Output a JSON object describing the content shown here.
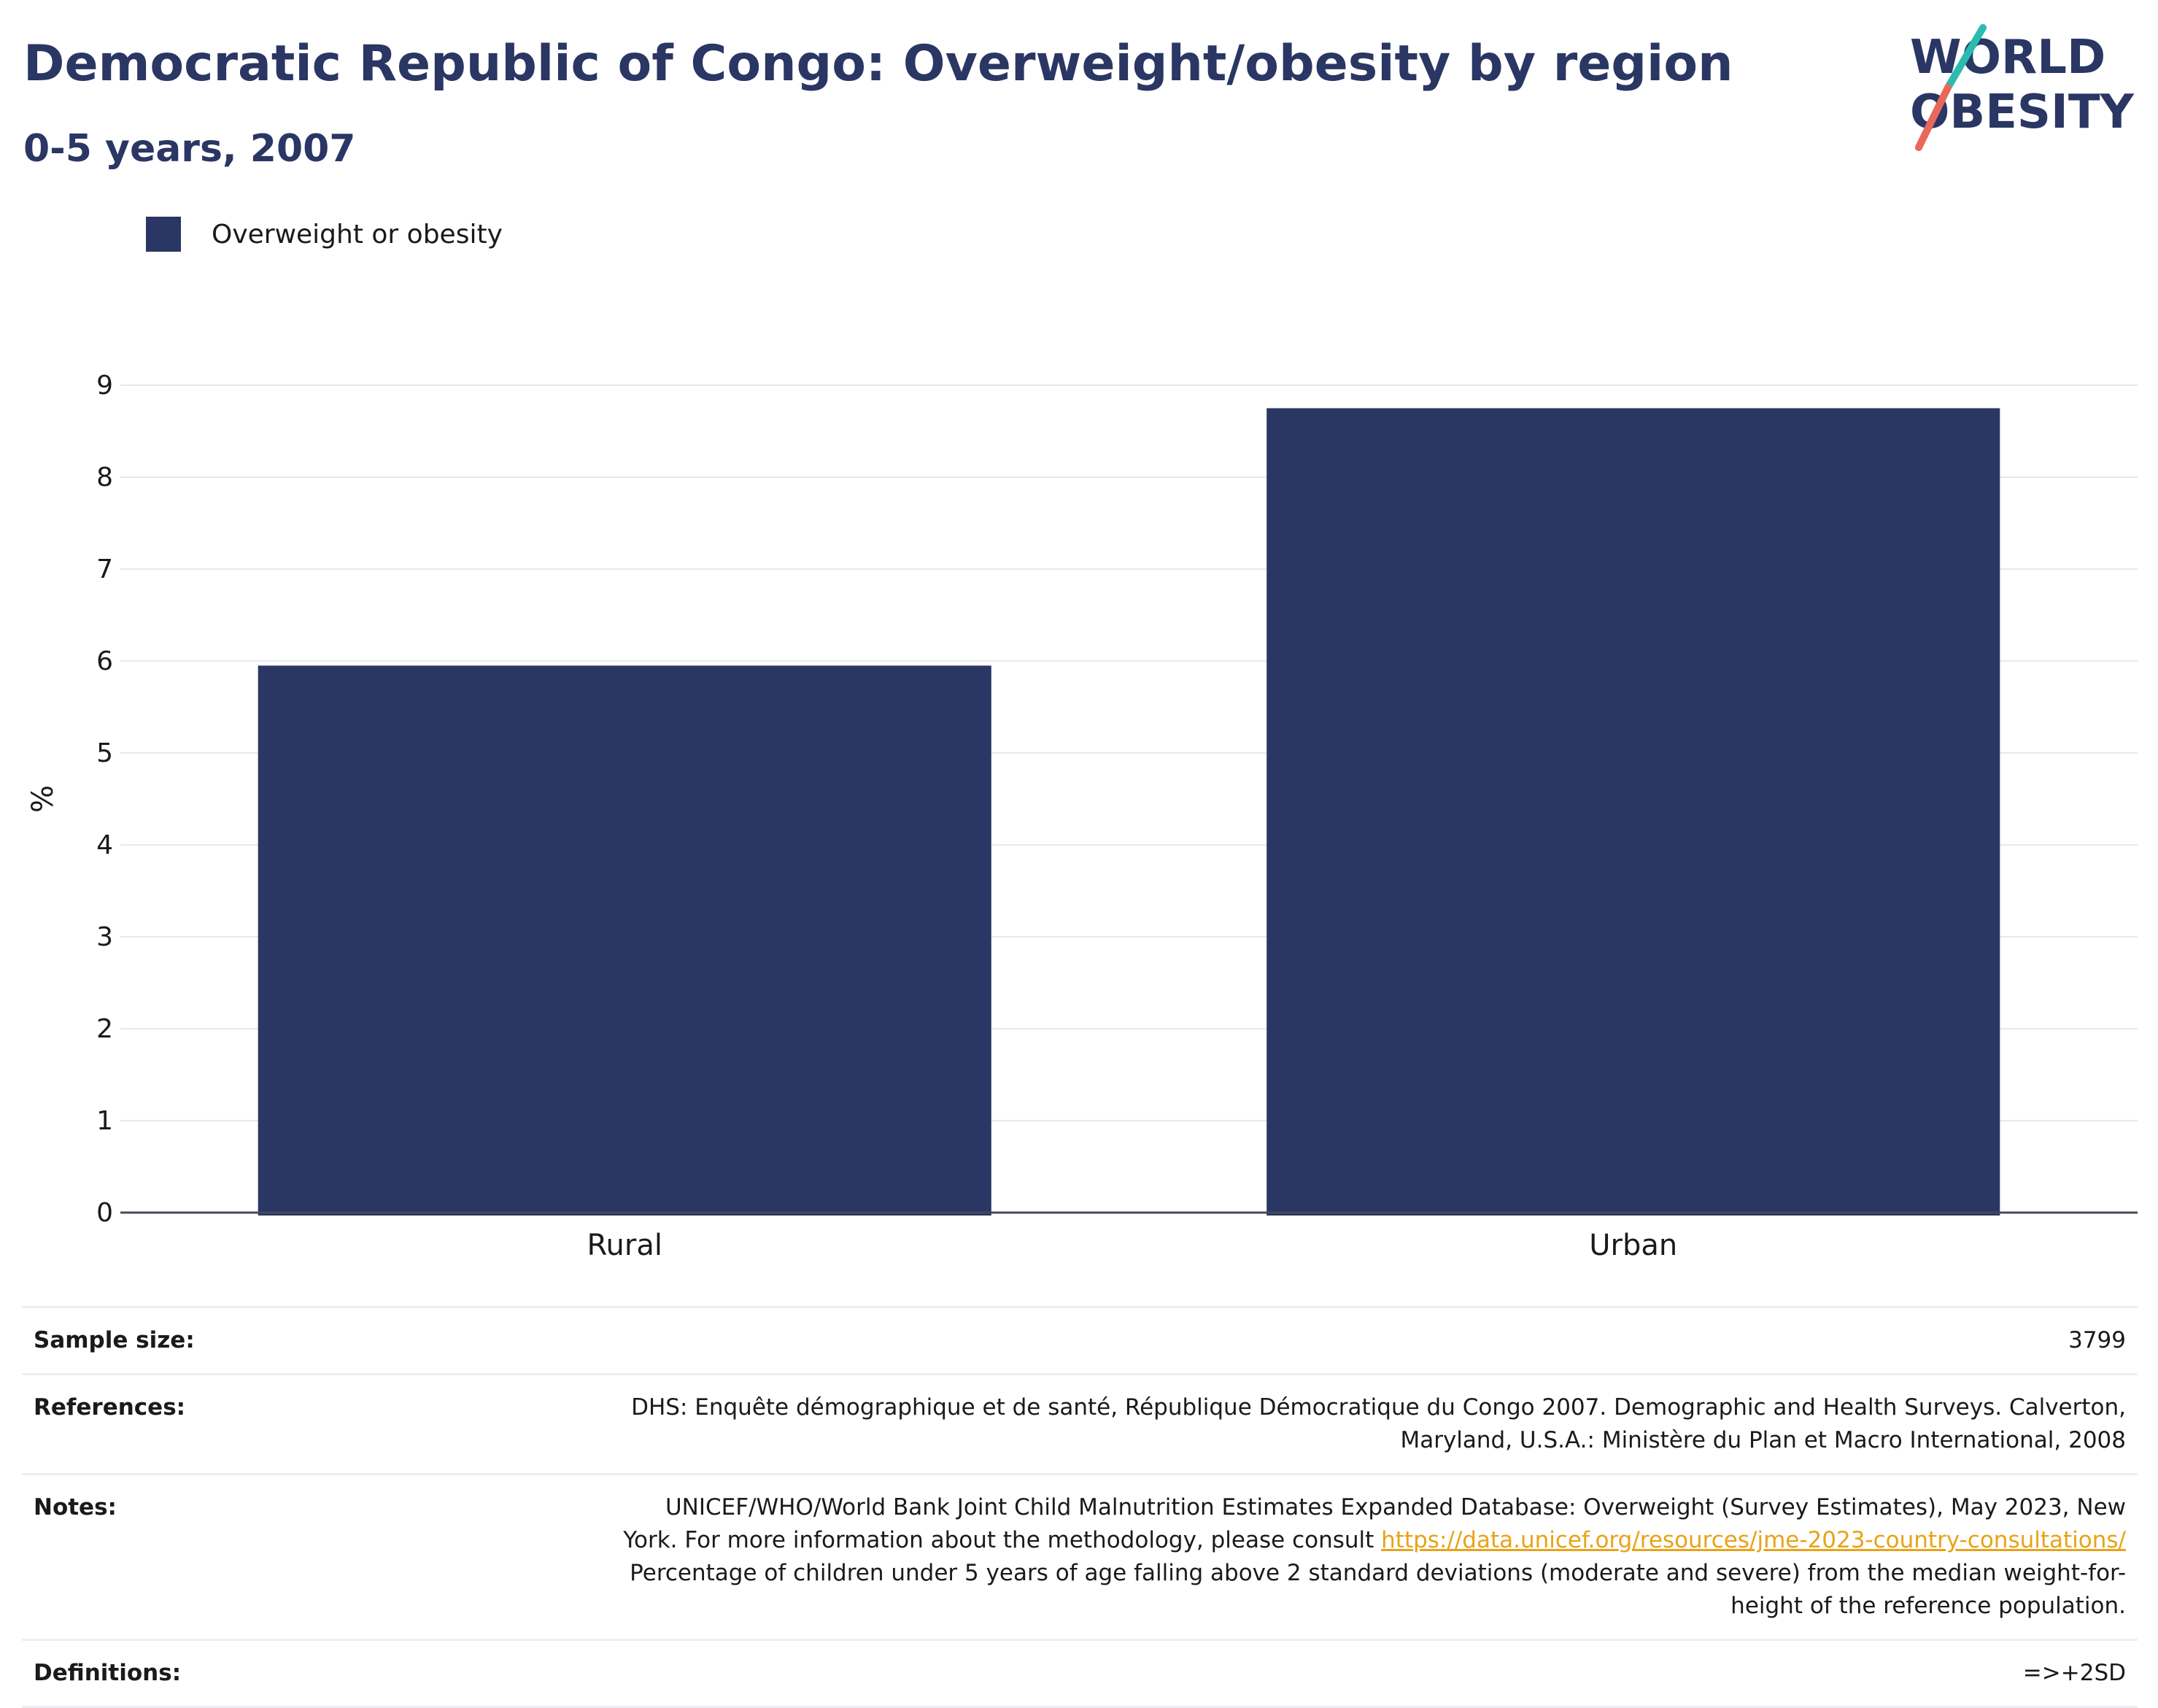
{
  "header": {
    "title": "Democratic Republic of Congo: Overweight/obesity by region",
    "subtitle": "0-5 years, 2007",
    "logo_line1": "WORLD",
    "logo_line2": "OBESITY"
  },
  "colors": {
    "bar": "#2a3663",
    "title": "#2a3663",
    "link": "#e8a317",
    "logo_teal": "#2bbbb0",
    "logo_coral": "#e8685a"
  },
  "chart_data": {
    "type": "bar",
    "categories": [
      "Rural",
      "Urban"
    ],
    "series": [
      {
        "name": "Overweight or obesity",
        "values": [
          5.95,
          8.75
        ]
      }
    ],
    "title": "Democratic Republic of Congo: Overweight/obesity by region",
    "subtitle": "0-5 years, 2007",
    "xlabel": "",
    "ylabel": "%",
    "ylim": [
      0,
      9
    ],
    "yticks": [
      "0",
      "1",
      "2",
      "3",
      "4",
      "5",
      "6",
      "7",
      "8",
      "9"
    ],
    "grid": true,
    "legend": "top-left"
  },
  "info": {
    "sample_size": {
      "label": "Sample size:",
      "value": "3799"
    },
    "references": {
      "label": "References:",
      "line1": "DHS: Enquête démographique et de santé, République Démocratique du Congo 2007. Demographic and Health Surveys. Calverton,",
      "line2": "Maryland, U.S.A.: Ministère du Plan et Macro International, 2008"
    },
    "notes": {
      "label": "Notes:",
      "line1": "UNICEF/WHO/World Bank Joint Child Malnutrition Estimates Expanded Database: Overweight (Survey Estimates), May 2023, New",
      "line2_prefix": "York. For more information about the methodology, please consult ",
      "link": "https://data.unicef.org/resources/jme-2023-country-consultations/",
      "line3": "Percentage of children under 5 years of age falling above 2 standard deviations (moderate and severe) from the median weight-for-",
      "line4": "height of the reference population."
    },
    "definitions": {
      "label": "Definitions:",
      "value": "=>+2SD"
    }
  }
}
